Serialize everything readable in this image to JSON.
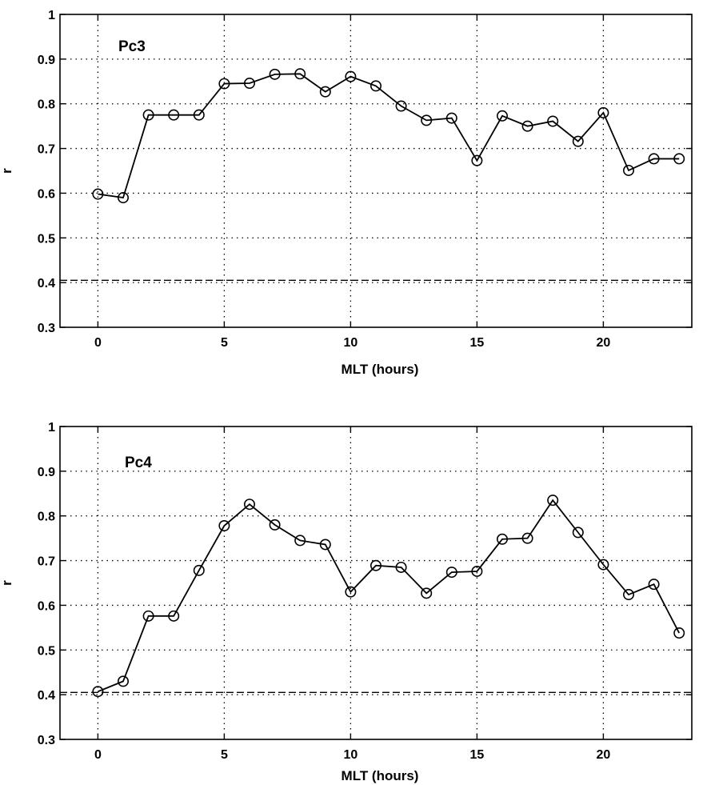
{
  "chart_data": [
    {
      "type": "line",
      "panel_label": "Pc3",
      "xlabel": "MLT (hours)",
      "ylabel": "r",
      "xlim": [
        -1.5,
        23.5
      ],
      "ylim": [
        0.3,
        1.0
      ],
      "xticks": [
        "0",
        "5",
        "10",
        "15",
        "20"
      ],
      "yticks": [
        "0.3",
        "0.4",
        "0.5",
        "0.6",
        "0.7",
        "0.8",
        "0.9",
        "1"
      ],
      "grid": true,
      "reference_line": 0.405,
      "x": [
        0,
        1,
        2,
        3,
        4,
        5,
        6,
        7,
        8,
        9,
        10,
        11,
        12,
        13,
        14,
        15,
        16,
        17,
        18,
        19,
        20,
        21,
        22,
        23
      ],
      "y": [
        0.598,
        0.59,
        0.775,
        0.775,
        0.775,
        0.845,
        0.846,
        0.866,
        0.867,
        0.827,
        0.861,
        0.84,
        0.795,
        0.763,
        0.768,
        0.673,
        0.773,
        0.75,
        0.761,
        0.716,
        0.78,
        0.651,
        0.677,
        0.677
      ]
    },
    {
      "type": "line",
      "panel_label": "Pc4",
      "xlabel": "MLT (hours)",
      "ylabel": "r",
      "xlim": [
        -1.5,
        23.5
      ],
      "ylim": [
        0.3,
        1.0
      ],
      "xticks": [
        "0",
        "5",
        "10",
        "15",
        "20"
      ],
      "yticks": [
        "0.3",
        "0.4",
        "0.5",
        "0.6",
        "0.7",
        "0.8",
        "0.9",
        "1"
      ],
      "grid": true,
      "reference_line": 0.405,
      "x": [
        0,
        1,
        2,
        3,
        4,
        5,
        6,
        7,
        8,
        9,
        10,
        11,
        12,
        13,
        14,
        15,
        16,
        17,
        18,
        19,
        20,
        21,
        22,
        23
      ],
      "y": [
        0.407,
        0.43,
        0.576,
        0.576,
        0.678,
        0.778,
        0.826,
        0.78,
        0.745,
        0.736,
        0.63,
        0.689,
        0.685,
        0.627,
        0.674,
        0.676,
        0.748,
        0.75,
        0.835,
        0.763,
        0.691,
        0.624,
        0.647,
        0.538
      ]
    }
  ]
}
